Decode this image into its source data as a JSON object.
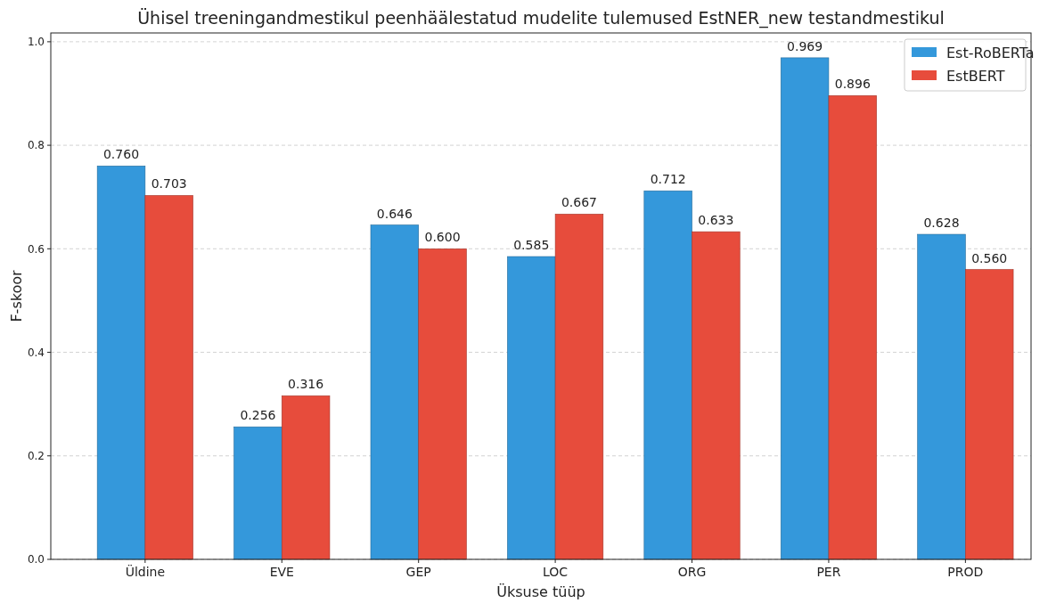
{
  "chart_data": {
    "type": "bar",
    "title": "Ühisel treeningandmestikul peenhäälestatud mudelite tulemused EstNER_new testandmestikul",
    "xlabel": "Üksuse tüüp",
    "ylabel": "F-skoor",
    "categories": [
      "Üldine",
      "EVE",
      "GEP",
      "LOC",
      "ORG",
      "PER",
      "PROD"
    ],
    "series": [
      {
        "name": "Est-RoBERTa",
        "color": "#3498db",
        "values": [
          0.76,
          0.256,
          0.646,
          0.585,
          0.712,
          0.969,
          0.628
        ]
      },
      {
        "name": "EstBERT",
        "color": "#e74c3c",
        "values": [
          0.703,
          0.316,
          0.6,
          0.667,
          0.633,
          0.896,
          0.56
        ]
      }
    ],
    "value_labels": [
      [
        "0.760",
        "0.256",
        "0.646",
        "0.585",
        "0.712",
        "0.969",
        "0.628"
      ],
      [
        "0.703",
        "0.316",
        "0.600",
        "0.667",
        "0.633",
        "0.896",
        "0.560"
      ]
    ],
    "ylim": [
      0,
      1.017
    ],
    "yticks": [
      {
        "value": 0,
        "label": "0.0"
      },
      {
        "value": 0.2,
        "label": "0.2"
      },
      {
        "value": 0.4,
        "label": "0.4"
      },
      {
        "value": 0.6,
        "label": "0.6"
      },
      {
        "value": 0.8,
        "label": "0.8"
      },
      {
        "value": 1,
        "label": "1.0"
      }
    ],
    "grid": "y",
    "legend": "top right"
  }
}
